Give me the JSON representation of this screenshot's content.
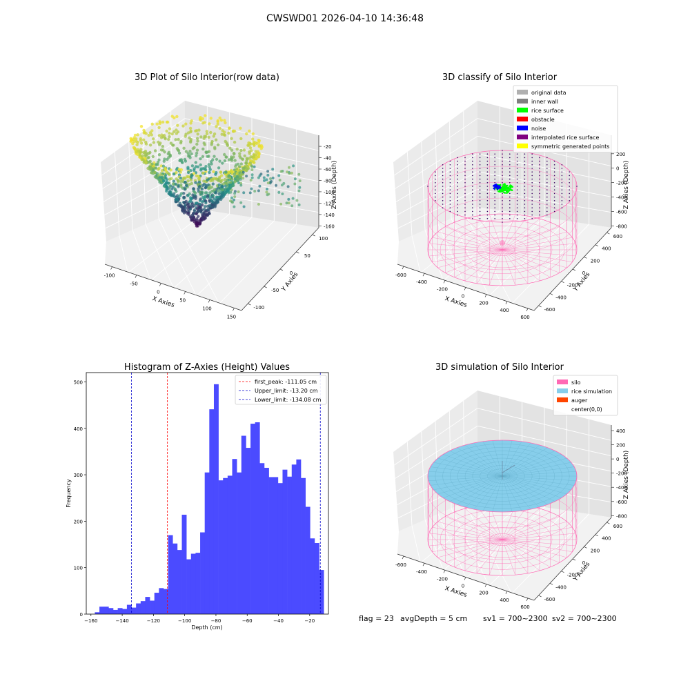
{
  "suptitle": "CWSWD01 2026-04-10 14:36:48",
  "footer": {
    "flag": "flag = 23",
    "avg_depth": "avgDepth = 5 cm",
    "sv1": "sv1 = 700~2300",
    "sv2": "sv2 = 700~2300"
  },
  "colors": {
    "viridis_low": "#440154",
    "viridis_mid": "#21918c",
    "viridis_high": "#fde725",
    "hist_bar": "#4b4bff",
    "silo_pink": "#ff69b4",
    "rice_blue": "#87ceeb",
    "first_peak_line": "#ff0000",
    "limit_line": "#0000cc",
    "rice_surface": "#00ff00",
    "noise": "#0000ff"
  },
  "chart_data": [
    {
      "type": "scatter",
      "title": "3D Plot of Silo Interior(row data)",
      "xlabel": "X Axies",
      "ylabel": "Y Axies",
      "zlabel": "Z Axies (Depth)",
      "x_ticks": [
        "-100",
        "-50",
        "0",
        "50",
        "100",
        "150"
      ],
      "y_ticks": [
        "-100",
        "-50",
        "0",
        "50",
        "100"
      ],
      "z_ticks": [
        "-20",
        "-40",
        "-60",
        "-80",
        "-100",
        "-120",
        "-140",
        "-160"
      ],
      "zlim": [
        -165,
        -15
      ],
      "colormap": "viridis"
    },
    {
      "type": "scatter",
      "title": "3D classify of Silo Interior",
      "xlabel": "X Axies",
      "ylabel": "Y Axies",
      "zlabel": "Z Axies (Depth)",
      "x_ticks": [
        "-600",
        "-400",
        "-200",
        "0",
        "200",
        "400",
        "600"
      ],
      "y_ticks": [
        "-600",
        "-400",
        "-200",
        "0",
        "200",
        "400",
        "600"
      ],
      "z_ticks": [
        "200",
        "0",
        "-200",
        "-400",
        "-600",
        "-800"
      ],
      "legend": [
        {
          "label": "original data",
          "color": "#b0b0b0"
        },
        {
          "label": "inner wall",
          "color": "#808080"
        },
        {
          "label": "rice surface",
          "color": "#00ff00"
        },
        {
          "label": "obstacle",
          "color": "#ff0000"
        },
        {
          "label": "noise",
          "color": "#0000ff"
        },
        {
          "label": "interpolated rice surface",
          "color": "#800080"
        },
        {
          "label": "symmetric generated points",
          "color": "#ffff00"
        }
      ],
      "legend_position": "upper-right"
    },
    {
      "type": "bar",
      "title": "Histogram of Z-Axies (Height) Values",
      "xlabel": "Depth (cm)",
      "ylabel": "Frequency",
      "xlim": [
        -163,
        -8
      ],
      "ylim": [
        0,
        520
      ],
      "x_ticks": [
        -160,
        -140,
        -120,
        -100,
        -80,
        -60,
        -40,
        -20
      ],
      "y_ticks": [
        0,
        100,
        200,
        300,
        400,
        500
      ],
      "bin_start": -157.5,
      "bin_width": 2.93,
      "values": [
        4,
        16,
        16,
        13,
        9,
        13,
        11,
        20,
        14,
        23,
        28,
        37,
        29,
        46,
        56,
        54,
        170,
        152,
        138,
        214,
        118,
        130,
        132,
        176,
        305,
        441,
        495,
        288,
        293,
        298,
        334,
        305,
        384,
        358,
        410,
        413,
        325,
        315,
        295,
        295,
        282,
        311,
        296,
        322,
        333,
        293,
        231,
        163,
        153,
        95
      ],
      "vlines": [
        {
          "label": "first_peak: -111.05 cm",
          "x": -111.05,
          "color": "#ff0000"
        },
        {
          "label": "Upper_limit: -13.20 cm",
          "x": -13.2,
          "color": "#0000cc"
        },
        {
          "label": "Lower_limit: -134.08 cm",
          "x": -134.08,
          "color": "#0000cc"
        }
      ],
      "legend_position": "upper-right"
    },
    {
      "type": "surface",
      "title": "3D simulation of Silo Interior",
      "xlabel": "X Axies",
      "ylabel": "Y Axies",
      "zlabel": "Z Axies (Depth)",
      "x_ticks": [
        "-600",
        "-400",
        "-200",
        "0",
        "200",
        "400",
        "600"
      ],
      "y_ticks": [
        "-600",
        "-400",
        "-200",
        "0",
        "200",
        "400",
        "600"
      ],
      "z_ticks": [
        "400",
        "200",
        "0",
        "-200",
        "-400",
        "-600",
        "-800"
      ],
      "legend": [
        {
          "label": "silo",
          "color": "#ff69b4"
        },
        {
          "label": "rice simulation",
          "color": "#87ceeb"
        },
        {
          "label": "auger",
          "color": "#ff4500"
        },
        {
          "label": "center(0,0)",
          "color": "#ffffff"
        }
      ],
      "legend_position": "upper-right"
    }
  ]
}
